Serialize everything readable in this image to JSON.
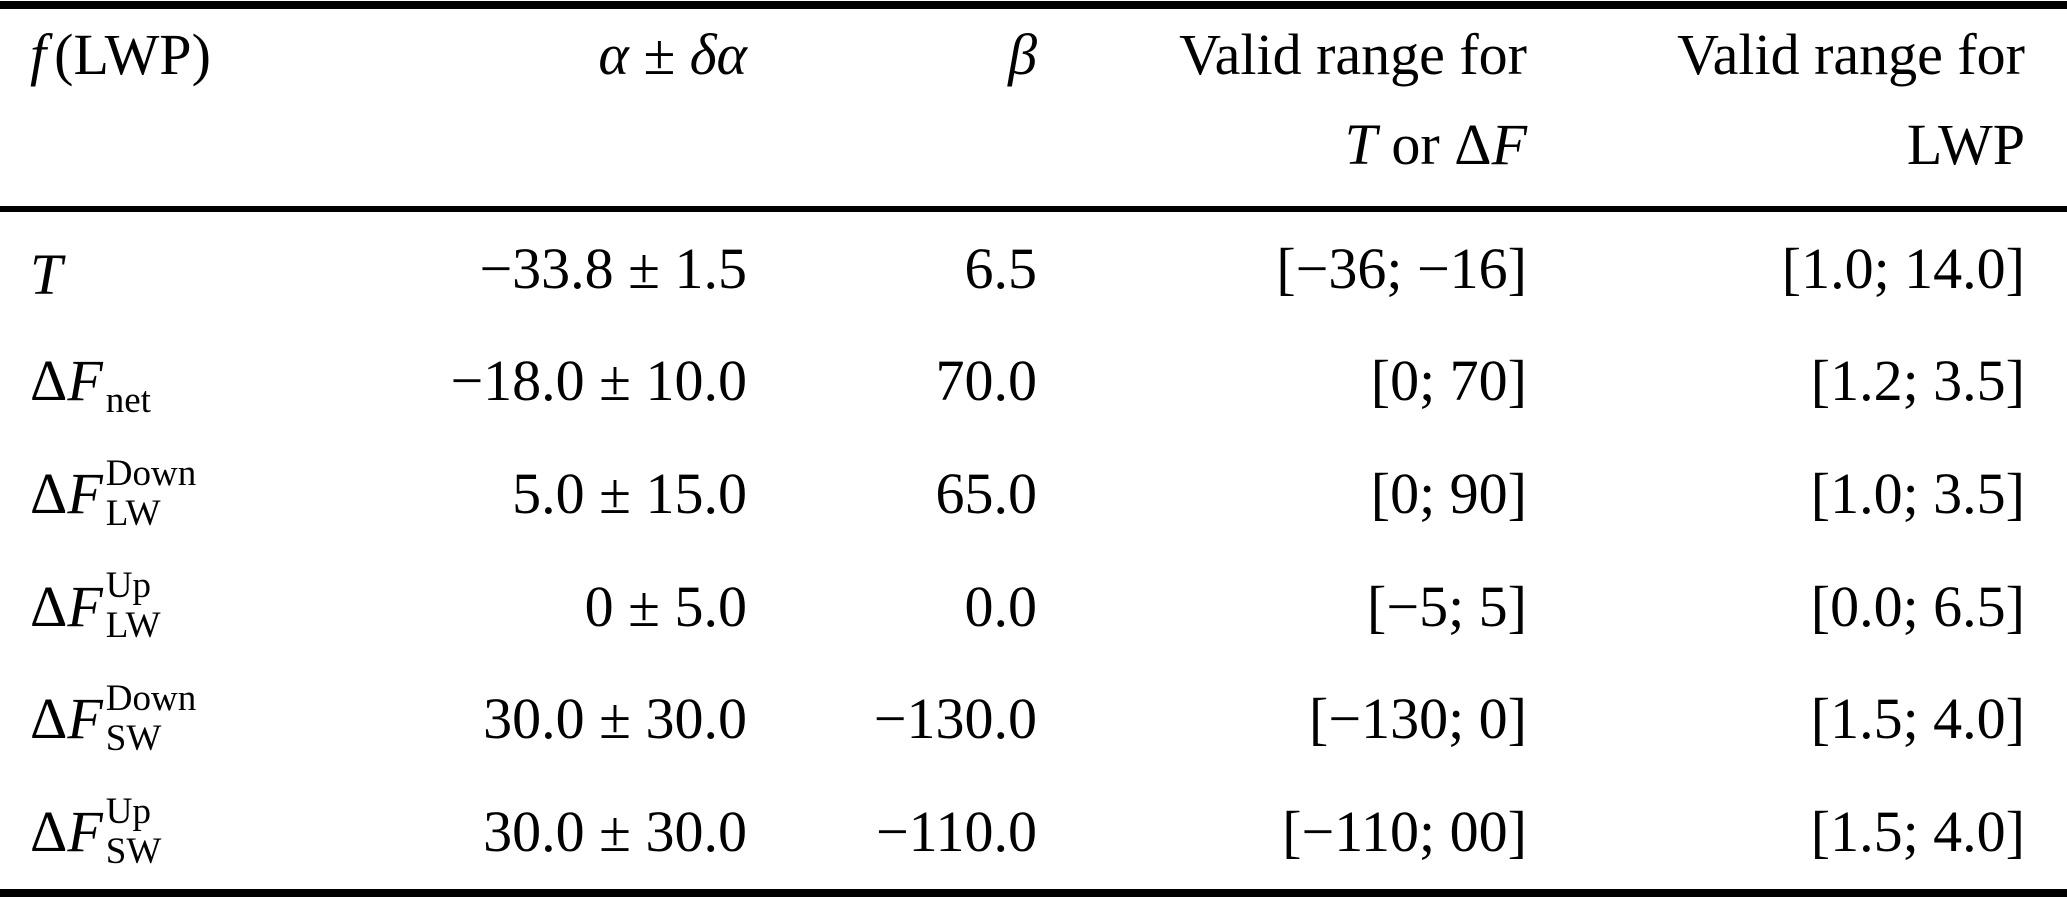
{
  "table": {
    "header": {
      "col1_f": "f",
      "col1_rest": "(LWP)",
      "col2": "α ± δα",
      "col3": "β",
      "col4_line1": "Valid range for",
      "col4_T": "T",
      "col4_or": " or ",
      "col4_delta": "Δ",
      "col4_F": "F",
      "col5_line1": "Valid range for",
      "col5_line2": "LWP"
    },
    "rows": [
      {
        "label": {
          "delta": "",
          "letter": "T",
          "sup": "",
          "sub": ""
        },
        "alpha": "−33.8 ± 1.5",
        "beta": "6.5",
        "range_tf": "[−36; −16]",
        "range_lwp": "[1.0; 14.0]"
      },
      {
        "label": {
          "delta": "Δ",
          "letter": "F",
          "sup": "",
          "sub": "net"
        },
        "alpha": "−18.0 ± 10.0",
        "beta": "70.0",
        "range_tf": "[0; 70]",
        "range_lwp": "[1.2; 3.5]"
      },
      {
        "label": {
          "delta": "Δ",
          "letter": "F",
          "sup": "Down",
          "sub": "LW"
        },
        "alpha": "5.0 ± 15.0",
        "beta": "65.0",
        "range_tf": "[0; 90]",
        "range_lwp": "[1.0; 3.5]"
      },
      {
        "label": {
          "delta": "Δ",
          "letter": "F",
          "sup": "Up",
          "sub": "LW"
        },
        "alpha": "0 ± 5.0",
        "beta": "0.0",
        "range_tf": "[−5; 5]",
        "range_lwp": "[0.0; 6.5]"
      },
      {
        "label": {
          "delta": "Δ",
          "letter": "F",
          "sup": "Down",
          "sub": "SW"
        },
        "alpha": "30.0 ± 30.0",
        "beta": "−130.0",
        "range_tf": "[−130; 0]",
        "range_lwp": "[1.5; 4.0]"
      },
      {
        "label": {
          "delta": "Δ",
          "letter": "F",
          "sup": "Up",
          "sub": "SW"
        },
        "alpha": "30.0 ± 30.0",
        "beta": "−110.0",
        "range_tf": "[−110; 00]",
        "range_lwp": "[1.5; 4.0]"
      }
    ]
  }
}
